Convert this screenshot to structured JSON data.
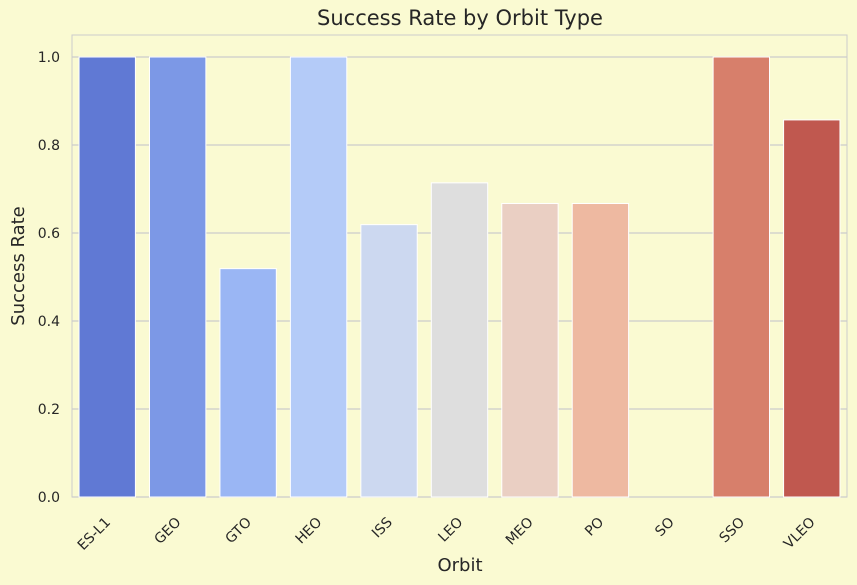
{
  "chart_data": {
    "type": "bar",
    "title": "Success Rate by Orbit Type",
    "xlabel": "Orbit",
    "ylabel": "Success Rate",
    "categories": [
      "ES-L1",
      "GEO",
      "GTO",
      "HEO",
      "ISS",
      "LEO",
      "MEO",
      "PO",
      "SO",
      "SSO",
      "VLEO"
    ],
    "values": [
      1.0,
      1.0,
      0.519,
      1.0,
      0.619,
      0.714,
      0.667,
      0.667,
      0.0,
      1.0,
      0.857
    ],
    "colors": [
      "#6079d4",
      "#7c98e6",
      "#9ab6f4",
      "#b4cbf8",
      "#ccd8f0",
      "#dedede",
      "#eacfc3",
      "#eeb9a1",
      "#e7967e",
      "#d77f6b",
      "#c0584f"
    ],
    "ylim": [
      0,
      1.05
    ],
    "yticks": [
      0.0,
      0.2,
      0.4,
      0.6,
      0.8,
      1.0
    ],
    "ytick_labels": [
      "0.0",
      "0.2",
      "0.4",
      "0.6",
      "0.8",
      "1.0"
    ],
    "grid": true,
    "plot_background": "#fafad2",
    "grid_color": "#cccccc"
  }
}
